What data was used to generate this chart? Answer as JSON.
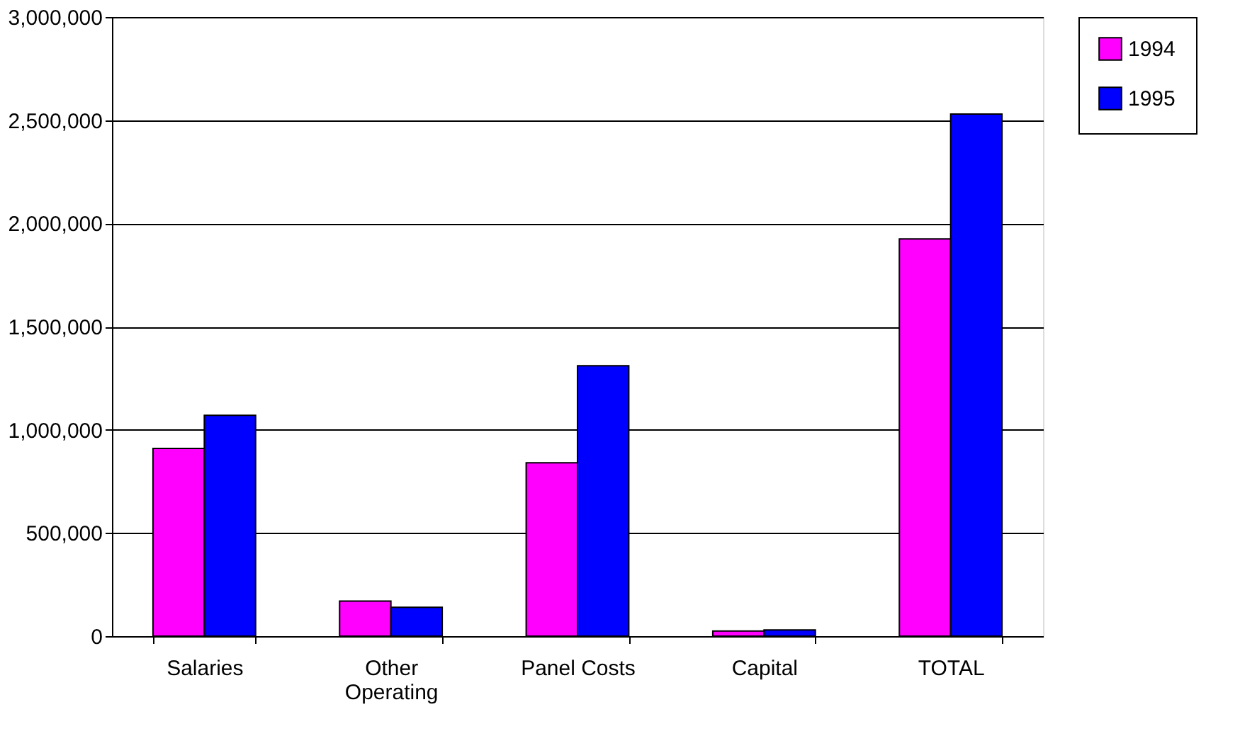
{
  "chart_data": {
    "type": "bar",
    "categories": [
      "Salaries",
      "Other Operating",
      "Panel Costs",
      "Capital",
      "TOTAL"
    ],
    "series": [
      {
        "name": "1994",
        "color": "#ff00ff",
        "values": [
          910000,
          170000,
          840000,
          25000,
          1925000
        ]
      },
      {
        "name": "1995",
        "color": "#0000ff",
        "values": [
          1070000,
          140000,
          1310000,
          30000,
          2530000
        ]
      }
    ],
    "ylim": [
      0,
      3000000
    ],
    "yticks": [
      {
        "value": 0,
        "label": "0"
      },
      {
        "value": 500000,
        "label": "500,000"
      },
      {
        "value": 1000000,
        "label": "1,000,000"
      },
      {
        "value": 1500000,
        "label": "1,500,000"
      },
      {
        "value": 2000000,
        "label": "2,000,000"
      },
      {
        "value": 2500000,
        "label": "2,500,000"
      },
      {
        "value": 3000000,
        "label": "3,000,000"
      }
    ],
    "grid": "y",
    "legend": "right"
  }
}
